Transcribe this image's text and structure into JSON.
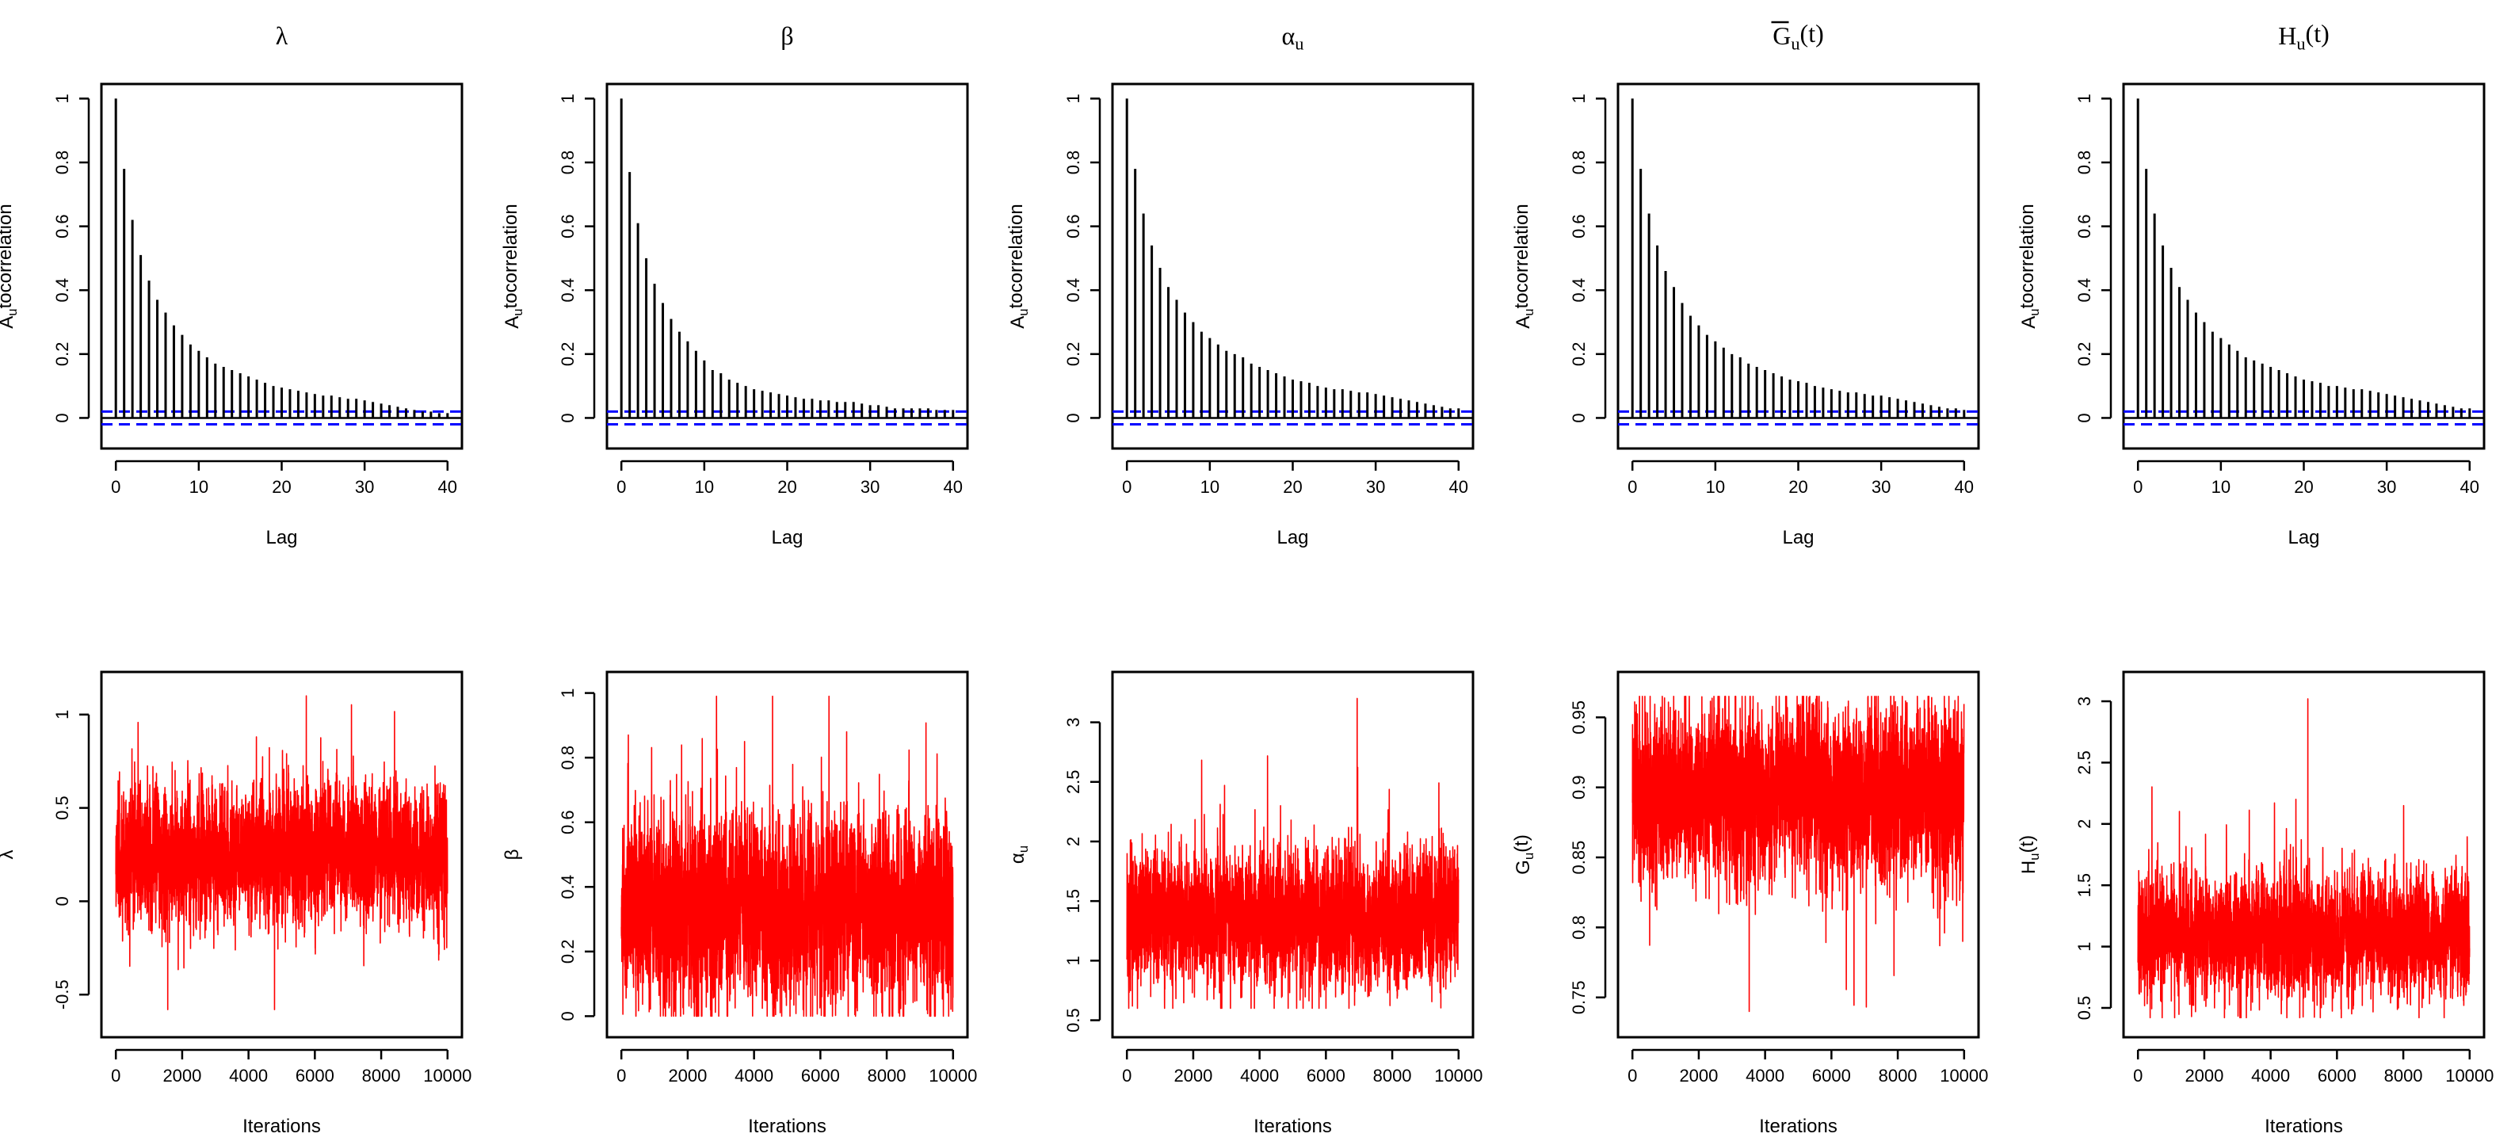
{
  "chart_data": [
    {
      "type": "bar",
      "panel": "acf",
      "title": "λ",
      "xlabel": "Lag",
      "ylabel": "Autocorrelation",
      "xlim": [
        0,
        40
      ],
      "ylim": [
        -0.05,
        1.0
      ],
      "xticks": [
        0,
        10,
        20,
        30,
        40
      ],
      "yticks": [
        0.0,
        0.2,
        0.4,
        0.6,
        0.8,
        1.0
      ],
      "ci": 0.02,
      "lags": [
        0,
        1,
        2,
        3,
        4,
        5,
        6,
        7,
        8,
        9,
        10,
        11,
        12,
        13,
        14,
        15,
        16,
        17,
        18,
        19,
        20,
        21,
        22,
        23,
        24,
        25,
        26,
        27,
        28,
        29,
        30,
        31,
        32,
        33,
        34,
        35,
        36,
        37,
        38,
        39,
        40
      ],
      "values": [
        1.0,
        0.78,
        0.62,
        0.51,
        0.43,
        0.37,
        0.33,
        0.29,
        0.26,
        0.23,
        0.21,
        0.19,
        0.17,
        0.16,
        0.15,
        0.14,
        0.13,
        0.12,
        0.11,
        0.1,
        0.095,
        0.09,
        0.085,
        0.08,
        0.075,
        0.07,
        0.07,
        0.065,
        0.06,
        0.06,
        0.055,
        0.05,
        0.045,
        0.04,
        0.035,
        0.03,
        0.025,
        0.02,
        0.02,
        0.015,
        0.015
      ]
    },
    {
      "type": "bar",
      "panel": "acf",
      "title": "β",
      "xlabel": "Lag",
      "ylabel": "Autocorrelation",
      "xlim": [
        0,
        40
      ],
      "ylim": [
        -0.05,
        1.0
      ],
      "xticks": [
        0,
        10,
        20,
        30,
        40
      ],
      "yticks": [
        0.0,
        0.2,
        0.4,
        0.6,
        0.8,
        1.0
      ],
      "ci": 0.02,
      "lags": [
        0,
        1,
        2,
        3,
        4,
        5,
        6,
        7,
        8,
        9,
        10,
        11,
        12,
        13,
        14,
        15,
        16,
        17,
        18,
        19,
        20,
        21,
        22,
        23,
        24,
        25,
        26,
        27,
        28,
        29,
        30,
        31,
        32,
        33,
        34,
        35,
        36,
        37,
        38,
        39,
        40
      ],
      "values": [
        1.0,
        0.77,
        0.61,
        0.5,
        0.42,
        0.36,
        0.31,
        0.27,
        0.24,
        0.21,
        0.18,
        0.15,
        0.14,
        0.12,
        0.11,
        0.1,
        0.09,
        0.085,
        0.08,
        0.075,
        0.07,
        0.065,
        0.06,
        0.06,
        0.055,
        0.055,
        0.05,
        0.05,
        0.05,
        0.045,
        0.04,
        0.04,
        0.035,
        0.03,
        0.03,
        0.03,
        0.03,
        0.03,
        0.025,
        0.025,
        0.025
      ]
    },
    {
      "type": "bar",
      "panel": "acf",
      "title": "αu",
      "xlabel": "Lag",
      "ylabel": "Autocorrelation",
      "xlim": [
        0,
        40
      ],
      "ylim": [
        -0.05,
        1.0
      ],
      "xticks": [
        0,
        10,
        20,
        30,
        40
      ],
      "yticks": [
        0.0,
        0.2,
        0.4,
        0.6,
        0.8,
        1.0
      ],
      "ci": 0.02,
      "lags": [
        0,
        1,
        2,
        3,
        4,
        5,
        6,
        7,
        8,
        9,
        10,
        11,
        12,
        13,
        14,
        15,
        16,
        17,
        18,
        19,
        20,
        21,
        22,
        23,
        24,
        25,
        26,
        27,
        28,
        29,
        30,
        31,
        32,
        33,
        34,
        35,
        36,
        37,
        38,
        39,
        40
      ],
      "values": [
        1.0,
        0.78,
        0.64,
        0.54,
        0.47,
        0.41,
        0.37,
        0.33,
        0.3,
        0.27,
        0.25,
        0.23,
        0.21,
        0.2,
        0.19,
        0.17,
        0.16,
        0.15,
        0.14,
        0.13,
        0.12,
        0.115,
        0.11,
        0.1,
        0.095,
        0.09,
        0.09,
        0.085,
        0.08,
        0.08,
        0.075,
        0.07,
        0.065,
        0.06,
        0.055,
        0.05,
        0.045,
        0.04,
        0.035,
        0.03,
        0.03
      ]
    },
    {
      "type": "bar",
      "panel": "acf",
      "title": "Gu(t)",
      "xlabel": "Lag",
      "ylabel": "Autocorrelation",
      "xlim": [
        0,
        40
      ],
      "ylim": [
        -0.05,
        1.0
      ],
      "xticks": [
        0,
        10,
        20,
        30,
        40
      ],
      "yticks": [
        0.0,
        0.2,
        0.4,
        0.6,
        0.8,
        1.0
      ],
      "ci": 0.02,
      "lags": [
        0,
        1,
        2,
        3,
        4,
        5,
        6,
        7,
        8,
        9,
        10,
        11,
        12,
        13,
        14,
        15,
        16,
        17,
        18,
        19,
        20,
        21,
        22,
        23,
        24,
        25,
        26,
        27,
        28,
        29,
        30,
        31,
        32,
        33,
        34,
        35,
        36,
        37,
        38,
        39,
        40
      ],
      "values": [
        1.0,
        0.78,
        0.64,
        0.54,
        0.46,
        0.41,
        0.36,
        0.32,
        0.29,
        0.26,
        0.24,
        0.22,
        0.2,
        0.19,
        0.17,
        0.16,
        0.15,
        0.14,
        0.13,
        0.12,
        0.115,
        0.11,
        0.1,
        0.095,
        0.09,
        0.085,
        0.08,
        0.08,
        0.075,
        0.07,
        0.07,
        0.065,
        0.06,
        0.055,
        0.05,
        0.045,
        0.04,
        0.035,
        0.03,
        0.03,
        0.025
      ]
    },
    {
      "type": "bar",
      "panel": "acf",
      "title": "Hu(t)",
      "xlabel": "Lag",
      "ylabel": "Autocorrelation",
      "xlim": [
        0,
        40
      ],
      "ylim": [
        -0.05,
        1.0
      ],
      "xticks": [
        0,
        10,
        20,
        30,
        40
      ],
      "yticks": [
        0.0,
        0.2,
        0.4,
        0.6,
        0.8,
        1.0
      ],
      "ci": 0.02,
      "lags": [
        0,
        1,
        2,
        3,
        4,
        5,
        6,
        7,
        8,
        9,
        10,
        11,
        12,
        13,
        14,
        15,
        16,
        17,
        18,
        19,
        20,
        21,
        22,
        23,
        24,
        25,
        26,
        27,
        28,
        29,
        30,
        31,
        32,
        33,
        34,
        35,
        36,
        37,
        38,
        39,
        40
      ],
      "values": [
        1.0,
        0.78,
        0.64,
        0.54,
        0.47,
        0.41,
        0.37,
        0.33,
        0.3,
        0.27,
        0.25,
        0.23,
        0.21,
        0.19,
        0.18,
        0.17,
        0.16,
        0.15,
        0.14,
        0.13,
        0.12,
        0.115,
        0.11,
        0.1,
        0.1,
        0.095,
        0.09,
        0.09,
        0.085,
        0.08,
        0.075,
        0.07,
        0.065,
        0.06,
        0.055,
        0.05,
        0.045,
        0.04,
        0.035,
        0.03,
        0.03
      ]
    },
    {
      "type": "line",
      "panel": "trace",
      "xlabel": "Iterations",
      "ylabel": "λ",
      "xlim": [
        0,
        10000
      ],
      "ylim": [
        -0.65,
        1.15
      ],
      "xticks": [
        0,
        2000,
        4000,
        6000,
        8000,
        10000
      ],
      "yticks": [
        -0.5,
        0.0,
        0.5,
        1.0
      ],
      "n": 10000,
      "center": 0.25,
      "spread": 0.16,
      "min": -0.58,
      "max": 1.1,
      "color": "#ff0000"
    },
    {
      "type": "line",
      "panel": "trace",
      "xlabel": "Iterations",
      "ylabel": "β",
      "xlim": [
        0,
        10000
      ],
      "ylim": [
        -0.02,
        1.02
      ],
      "xticks": [
        0,
        2000,
        4000,
        6000,
        8000,
        10000
      ],
      "yticks": [
        0.0,
        0.2,
        0.4,
        0.6,
        0.8,
        1.0
      ],
      "n": 10000,
      "center": 0.33,
      "spread": 0.13,
      "min": 0.0,
      "max": 0.99,
      "color": "#ff0000"
    },
    {
      "type": "line",
      "panel": "trace",
      "xlabel": "Iterations",
      "ylabel": "αu",
      "xlim": [
        0,
        10000
      ],
      "ylim": [
        0.48,
        3.3
      ],
      "xticks": [
        0,
        2000,
        4000,
        6000,
        8000,
        10000
      ],
      "yticks": [
        0.5,
        1.0,
        1.5,
        2.0,
        2.5,
        3.0
      ],
      "n": 10000,
      "center": 1.35,
      "spread": 0.25,
      "min": 0.6,
      "max": 3.2,
      "color": "#ff0000"
    },
    {
      "type": "line",
      "panel": "trace",
      "xlabel": "Iterations",
      "ylabel": "Gu(t)",
      "xlim": [
        0,
        10000
      ],
      "ylim": [
        0.732,
        0.972
      ],
      "xticks": [
        0,
        2000,
        4000,
        6000,
        8000,
        10000
      ],
      "yticks": [
        0.75,
        0.8,
        0.85,
        0.9,
        0.95
      ],
      "n": 10000,
      "center": 0.895,
      "spread": 0.028,
      "min": 0.74,
      "max": 0.965,
      "color": "#ff0000"
    },
    {
      "type": "line",
      "panel": "trace",
      "xlabel": "Iterations",
      "ylabel": "Hu(t)",
      "xlim": [
        0,
        10000
      ],
      "ylim": [
        0.38,
        3.12
      ],
      "xticks": [
        0,
        2000,
        4000,
        6000,
        8000,
        10000
      ],
      "yticks": [
        0.5,
        1.0,
        1.5,
        2.0,
        2.5,
        3.0
      ],
      "n": 10000,
      "center": 1.1,
      "spread": 0.22,
      "min": 0.42,
      "max": 3.02,
      "color": "#ff0000"
    }
  ]
}
